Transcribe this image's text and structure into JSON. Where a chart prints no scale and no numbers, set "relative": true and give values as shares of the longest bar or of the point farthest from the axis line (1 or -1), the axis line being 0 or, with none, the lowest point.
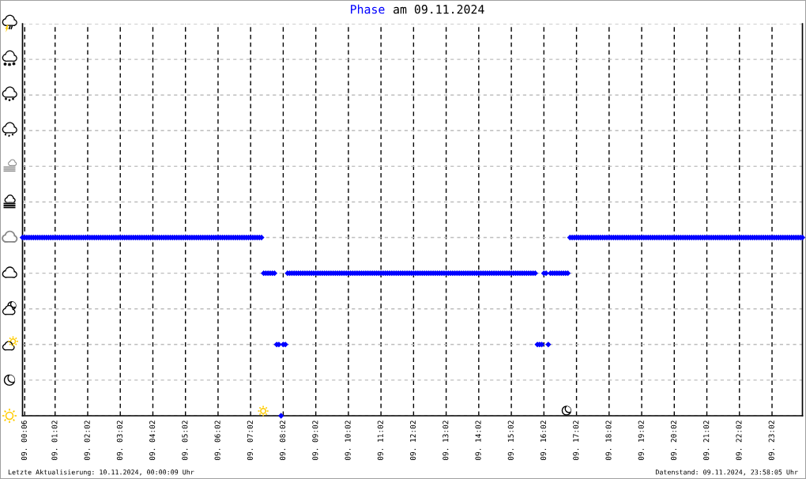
{
  "chart_data": {
    "type": "scatter",
    "title": "am 09.11.2024",
    "relative": true,
    "annotations": [
      "Letzte Aktualisierung: 10.11.2024, 00:00:09 Uhr",
      "Datenstand: 09.11.2024, 23:58:05 Uhr"
    ],
    "categories": [
      null,
      "09. 00:06",
      null,
      null,
      null,
      null,
      null,
      null,
      null,
      null,
      null,
      null,
      null,
      null,
      null,
      "09. 01:02",
      null,
      null,
      null,
      null,
      null,
      null,
      null,
      null,
      null,
      null,
      null,
      null,
      null,
      null,
      "09. 02:02",
      null,
      null,
      null,
      null,
      null,
      null,
      null,
      null,
      null,
      null,
      null,
      null,
      null,
      null,
      "09. 03:02",
      null,
      null,
      null,
      null,
      null,
      null,
      null,
      null,
      null,
      null,
      null,
      null,
      null,
      null,
      "09. 04:02",
      null,
      null,
      null,
      null,
      null,
      null,
      null,
      null,
      null,
      null,
      null,
      null,
      null,
      null,
      "09. 05:02",
      null,
      null,
      null,
      null,
      null,
      null,
      null,
      null,
      null,
      null,
      null,
      null,
      null,
      null,
      "09. 06:02",
      null,
      null,
      null,
      null,
      null,
      null,
      null,
      null,
      null,
      null,
      null,
      null,
      null,
      null,
      "09. 07:02",
      null,
      null,
      null,
      null,
      null,
      null,
      null,
      null,
      null,
      null,
      null,
      null,
      null,
      null,
      "09. 08:02",
      null,
      null,
      null,
      null,
      null,
      null,
      null,
      null,
      null,
      null,
      null,
      null,
      null,
      null,
      "09. 09:02",
      null,
      null,
      null,
      null,
      null,
      null,
      null,
      null,
      null,
      null,
      null,
      null,
      null,
      null,
      "09. 10:02",
      null,
      null,
      null,
      null,
      null,
      null,
      null,
      null,
      null,
      null,
      null,
      null,
      null,
      null,
      "09. 11:02",
      null,
      null,
      null,
      null,
      null,
      null,
      null,
      null,
      null,
      null,
      null,
      null,
      null,
      null,
      "09. 12:02",
      null,
      null,
      null,
      null,
      null,
      null,
      null,
      null,
      null,
      null,
      null,
      null,
      null,
      null,
      "09. 13:02",
      null,
      null,
      null,
      null,
      null,
      null,
      null,
      null,
      null,
      null,
      null,
      null,
      null,
      null,
      "09. 14:02",
      null,
      null,
      null,
      null,
      null,
      null,
      null,
      null,
      null,
      null,
      null,
      null,
      null,
      null,
      "09. 15:02",
      null,
      null,
      null,
      null,
      null,
      null,
      null,
      null,
      null,
      null,
      null,
      null,
      null,
      null,
      "09. 16:02",
      null,
      null,
      null,
      null,
      null,
      null,
      null,
      null,
      null,
      null,
      null,
      null,
      null,
      null,
      "09. 17:02",
      null,
      null,
      null,
      null,
      null,
      null,
      null,
      null,
      null,
      null,
      null,
      null,
      null,
      null,
      "09. 18:02",
      null,
      null,
      null,
      null,
      null,
      null,
      null,
      null,
      null,
      null,
      null,
      null,
      null,
      null,
      "09. 19:02",
      null,
      null,
      null,
      null,
      null,
      null,
      null,
      null,
      null,
      null,
      null,
      null,
      null,
      null,
      "09. 20:02",
      null,
      null,
      null,
      null,
      null,
      null,
      null,
      null,
      null,
      null,
      null,
      null,
      null,
      null,
      "09. 21:02",
      null,
      null,
      null,
      null,
      null,
      null,
      null,
      null,
      null,
      null,
      null,
      null,
      null,
      null,
      "09. 22:02",
      null,
      null,
      null,
      null,
      null,
      null,
      null,
      null,
      null,
      null,
      null,
      null,
      null,
      null,
      "09. 23:02",
      null,
      null,
      null,
      null,
      null,
      null,
      null,
      null,
      null,
      null,
      null,
      null,
      null,
      null
    ],
    "series": [
      {
        "name": "Phase",
        "color": "#0000ff",
        "values": [
          1,
          1,
          1,
          1,
          1,
          1,
          1,
          1,
          1,
          1,
          1,
          1,
          1,
          1,
          1,
          1,
          1,
          1,
          1,
          1,
          1,
          1,
          1,
          1,
          1,
          1,
          1,
          1,
          1,
          1,
          1,
          1,
          1,
          1,
          1,
          1,
          1,
          1,
          1,
          1,
          1,
          1,
          1,
          1,
          1,
          1,
          1,
          1,
          1,
          1,
          1,
          1,
          1,
          1,
          1,
          1,
          1,
          1,
          1,
          1,
          1,
          1,
          1,
          1,
          1,
          1,
          1,
          1,
          1,
          1,
          1,
          1,
          1,
          1,
          1,
          1,
          1,
          1,
          1,
          1,
          1,
          1,
          1,
          1,
          1,
          1,
          1,
          1,
          1,
          1,
          1,
          1,
          1,
          1,
          1,
          1,
          1,
          1,
          1,
          1,
          1,
          1,
          1,
          1,
          1,
          1,
          1,
          1,
          1,
          1,
          1,
          0.8,
          0.8,
          0.8,
          0.8,
          0.8,
          0.8,
          0.4,
          0.4,
          0,
          0.4,
          0.4,
          0.8,
          0.8,
          0.8,
          0.8,
          0.8,
          0.8,
          0.8,
          0.8,
          0.8,
          0.8,
          0.8,
          0.8,
          0.8,
          0.8,
          0.8,
          0.8,
          0.8,
          0.8,
          0.8,
          0.8,
          0.8,
          0.8,
          0.8,
          0.8,
          0.8,
          0.8,
          0.8,
          0.8,
          0.8,
          0.8,
          0.8,
          0.8,
          0.8,
          0.8,
          0.8,
          0.8,
          0.8,
          0.8,
          0.8,
          0.8,
          0.8,
          0.8,
          0.8,
          0.8,
          0.8,
          0.8,
          0.8,
          0.8,
          0.8,
          0.8,
          0.8,
          0.8,
          0.8,
          0.8,
          0.8,
          0.8,
          0.8,
          0.8,
          0.8,
          0.8,
          0.8,
          0.8,
          0.8,
          0.8,
          0.8,
          0.8,
          0.8,
          0.8,
          0.8,
          0.8,
          0.8,
          0.8,
          0.8,
          0.8,
          0.8,
          0.8,
          0.8,
          0.8,
          0.8,
          0.8,
          0.8,
          0.8,
          0.8,
          0.8,
          0.8,
          0.8,
          0.8,
          0.8,
          0.8,
          0.8,
          0.8,
          0.8,
          0.8,
          0.8,
          0.8,
          0.8,
          0.8,
          0.8,
          0.8,
          0.8,
          0.8,
          0.8,
          0.8,
          0.8,
          0.8,
          0.8,
          0.8,
          0.8,
          0.8,
          0.8,
          0.8,
          0.8,
          0.8,
          0.8,
          0.8,
          0.4,
          0.4,
          0.4,
          0.8,
          0.8,
          0.4,
          0.8,
          0.8,
          0.8,
          0.8,
          0.8,
          0.8,
          0.8,
          0.8,
          0.8,
          1,
          1,
          1,
          1,
          1,
          1,
          1,
          1,
          1,
          1,
          1,
          1,
          1,
          1,
          1,
          1,
          1,
          1,
          1,
          1,
          1,
          1,
          1,
          1,
          1,
          1,
          1,
          1,
          1,
          1,
          1,
          1,
          1,
          1,
          1,
          1,
          1,
          1,
          1,
          1,
          1,
          1,
          1,
          1,
          1,
          1,
          1,
          1,
          1,
          1,
          1,
          1,
          1,
          1,
          1,
          1,
          1,
          1,
          1,
          1,
          1,
          1,
          1,
          1,
          1,
          1,
          1,
          1,
          1,
          1,
          1,
          1,
          1,
          1,
          1,
          1,
          1,
          1,
          1,
          1,
          1,
          1,
          1,
          1,
          1,
          1,
          1,
          1,
          1,
          1,
          1,
          1,
          1,
          1,
          1,
          1,
          1,
          1,
          1,
          1,
          1,
          1,
          1,
          1,
          1,
          1,
          1,
          1
        ]
      }
    ],
    "grid": true,
    "marker": "diamond",
    "legend": "top"
  }
}
